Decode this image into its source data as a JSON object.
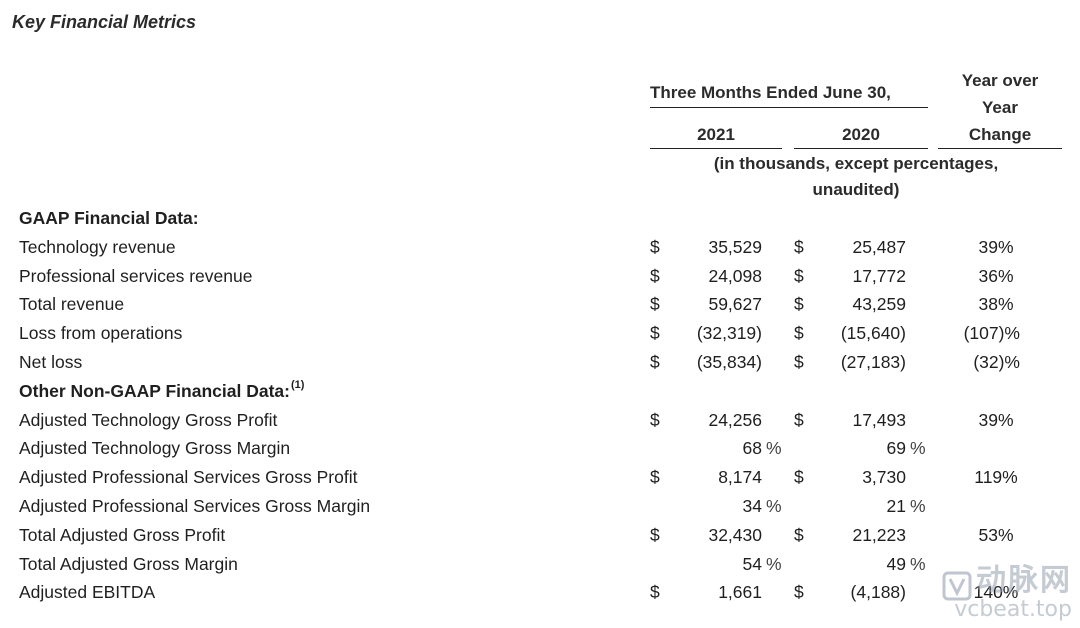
{
  "title": "Key Financial Metrics",
  "header": {
    "period": "Three Months Ended June 30,",
    "year1": "2021",
    "year2": "2020",
    "change_line1": "Year over",
    "change_line2": "Year",
    "change_line3": "Change",
    "units_line1": "(in thousands, except percentages,",
    "units_line2": "unaudited)"
  },
  "rows": [
    {
      "label": "GAAP Financial Data:",
      "section": true
    },
    {
      "label": "Technology revenue",
      "d1": "$",
      "v1": "35,529",
      "d2": "$",
      "v2": "25,487",
      "change": "39%"
    },
    {
      "label": "Professional services revenue",
      "d1": "$",
      "v1": "24,098",
      "d2": "$",
      "v2": "17,772",
      "change": "36%"
    },
    {
      "label": "Total revenue",
      "d1": "$",
      "v1": "59,627",
      "d2": "$",
      "v2": "43,259",
      "change": "38%"
    },
    {
      "label": "Loss from operations",
      "d1": "$",
      "v1": "(32,319)",
      "d2": "$",
      "v2": "(15,640)",
      "change": "(107)%"
    },
    {
      "label": "Net loss",
      "d1": "$",
      "v1": "(35,834)",
      "d2": "$",
      "v2": "(27,183)",
      "change": "(32)%"
    },
    {
      "label": "Other Non-GAAP Financial Data:",
      "section": true,
      "sup": "(1)"
    },
    {
      "label": "Adjusted Technology Gross Profit",
      "d1": "$",
      "v1": "24,256",
      "d2": "$",
      "v2": "17,493",
      "change": "39%"
    },
    {
      "label": "Adjusted Technology Gross Margin",
      "v1": "68",
      "p1": "%",
      "v2": "69",
      "p2": "%"
    },
    {
      "label": "Adjusted Professional Services Gross Profit",
      "d1": "$",
      "v1": "8,174",
      "d2": "$",
      "v2": "3,730",
      "change": "119%"
    },
    {
      "label": "Adjusted Professional Services Gross Margin",
      "v1": "34",
      "p1": "%",
      "v2": "21",
      "p2": "%"
    },
    {
      "label": "Total Adjusted Gross Profit",
      "d1": "$",
      "v1": "32,430",
      "d2": "$",
      "v2": "21,223",
      "change": "53%"
    },
    {
      "label": "Total Adjusted Gross Margin",
      "v1": "54",
      "p1": "%",
      "v2": "49",
      "p2": "%"
    },
    {
      "label": "Adjusted EBITDA",
      "d1": "$",
      "v1": "1,661",
      "d2": "$",
      "v2": "(4,188)",
      "change": "140%"
    }
  ],
  "watermark": {
    "cn": "动脉网",
    "en": "vcbeat.top"
  }
}
